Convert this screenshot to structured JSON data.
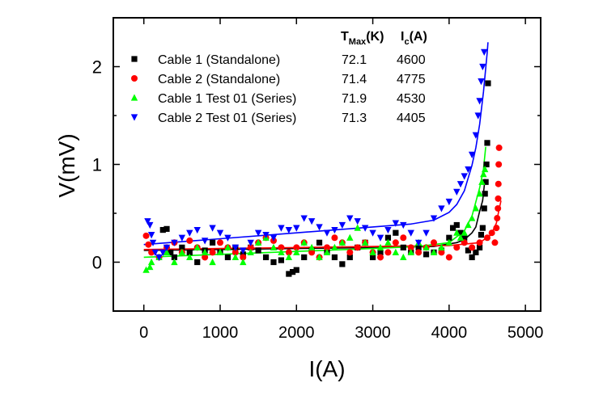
{
  "chart_data": {
    "type": "scatter",
    "xlabel": "I(A)",
    "ylabel": "V(mV)",
    "xlim": [
      -400,
      5200
    ],
    "ylim": [
      -0.5,
      2.5
    ],
    "xticks": [
      0,
      1000,
      2000,
      3000,
      4000,
      5000
    ],
    "yticks": [
      0,
      1,
      2
    ],
    "grid": false,
    "legend_position": "top-left",
    "table_headers": {
      "tmax": "T",
      "tmax_sub": "Max",
      "tmax_unit": "(K)",
      "ic": "I",
      "ic_sub": "c",
      "ic_unit": "(A)"
    },
    "series": [
      {
        "name": "Cable 1 (Standalone)",
        "tmax": "72.1",
        "ic": "4600",
        "color": "#000000",
        "marker": "square",
        "points": [
          [
            250,
            0.33
          ],
          [
            300,
            0.34
          ],
          [
            350,
            0.1
          ],
          [
            400,
            0.05
          ],
          [
            500,
            0.15
          ],
          [
            600,
            0.1
          ],
          [
            700,
            0.0
          ],
          [
            800,
            0.12
          ],
          [
            900,
            0.2
          ],
          [
            1000,
            0.1
          ],
          [
            1100,
            0.05
          ],
          [
            1200,
            0.15
          ],
          [
            1300,
            0.08
          ],
          [
            1400,
            0.15
          ],
          [
            1500,
            0.12
          ],
          [
            1600,
            0.05
          ],
          [
            1700,
            0.0
          ],
          [
            1800,
            0.02
          ],
          [
            1900,
            -0.12
          ],
          [
            1950,
            -0.1
          ],
          [
            2000,
            -0.08
          ],
          [
            2100,
            0.05
          ],
          [
            2200,
            0.12
          ],
          [
            2300,
            0.2
          ],
          [
            2400,
            0.1
          ],
          [
            2500,
            0.05
          ],
          [
            2600,
            -0.02
          ],
          [
            2700,
            0.05
          ],
          [
            2800,
            0.15
          ],
          [
            2900,
            0.2
          ],
          [
            3000,
            0.05
          ],
          [
            3100,
            0.1
          ],
          [
            3200,
            0.25
          ],
          [
            3300,
            0.3
          ],
          [
            3400,
            0.15
          ],
          [
            3500,
            0.1
          ],
          [
            3600,
            0.15
          ],
          [
            3700,
            0.08
          ],
          [
            3800,
            0.1
          ],
          [
            3900,
            0.12
          ],
          [
            4000,
            0.25
          ],
          [
            4050,
            0.35
          ],
          [
            4100,
            0.38
          ],
          [
            4150,
            0.3
          ],
          [
            4200,
            0.25
          ],
          [
            4250,
            0.12
          ],
          [
            4300,
            0.05
          ],
          [
            4350,
            0.1
          ],
          [
            4400,
            0.15
          ],
          [
            4420,
            0.28
          ],
          [
            4440,
            0.35
          ],
          [
            4460,
            0.55
          ],
          [
            4470,
            0.7
          ],
          [
            4480,
            0.82
          ],
          [
            4490,
            1.0
          ],
          [
            4500,
            1.22
          ],
          [
            4510,
            1.83
          ]
        ],
        "fit": [
          [
            0,
            0.12
          ],
          [
            1000,
            0.13
          ],
          [
            2000,
            0.14
          ],
          [
            3000,
            0.15
          ],
          [
            3800,
            0.16
          ],
          [
            4100,
            0.2
          ],
          [
            4200,
            0.23
          ],
          [
            4300,
            0.3
          ],
          [
            4350,
            0.36
          ],
          [
            4400,
            0.52
          ],
          [
            4440,
            0.63
          ],
          [
            4470,
            0.85
          ]
        ]
      },
      {
        "name": "Cable 2 (Standalone)",
        "tmax": "71.4",
        "ic": "4775",
        "color": "#ff0000",
        "marker": "circle",
        "points": [
          [
            30,
            0.27
          ],
          [
            60,
            0.18
          ],
          [
            100,
            0.1
          ],
          [
            200,
            0.05
          ],
          [
            300,
            0.15
          ],
          [
            400,
            0.2
          ],
          [
            500,
            0.1
          ],
          [
            600,
            0.22
          ],
          [
            700,
            0.15
          ],
          [
            800,
            0.05
          ],
          [
            900,
            0.1
          ],
          [
            1000,
            0.2
          ],
          [
            1100,
            0.15
          ],
          [
            1200,
            0.1
          ],
          [
            1300,
            0.05
          ],
          [
            1400,
            0.15
          ],
          [
            1500,
            0.2
          ],
          [
            1600,
            0.25
          ],
          [
            1700,
            0.22
          ],
          [
            1800,
            0.15
          ],
          [
            1900,
            0.1
          ],
          [
            2000,
            0.15
          ],
          [
            2100,
            0.2
          ],
          [
            2200,
            0.1
          ],
          [
            2300,
            0.05
          ],
          [
            2400,
            0.15
          ],
          [
            2500,
            0.25
          ],
          [
            2600,
            0.2
          ],
          [
            2700,
            0.1
          ],
          [
            2800,
            0.15
          ],
          [
            2900,
            0.2
          ],
          [
            3000,
            0.1
          ],
          [
            3100,
            0.05
          ],
          [
            3200,
            0.1
          ],
          [
            3300,
            0.2
          ],
          [
            3400,
            0.25
          ],
          [
            3500,
            0.15
          ],
          [
            3600,
            0.1
          ],
          [
            3700,
            0.15
          ],
          [
            3800,
            0.2
          ],
          [
            3900,
            0.1
          ],
          [
            4000,
            0.05
          ],
          [
            4100,
            0.15
          ],
          [
            4200,
            0.2
          ],
          [
            4300,
            0.15
          ],
          [
            4400,
            0.2
          ],
          [
            4500,
            0.25
          ],
          [
            4560,
            0.3
          ],
          [
            4600,
            0.2
          ],
          [
            4620,
            0.35
          ],
          [
            4630,
            0.45
          ],
          [
            4640,
            0.55
          ],
          [
            4643,
            0.65
          ],
          [
            4646,
            0.8
          ],
          [
            4650,
            1.0
          ],
          [
            4655,
            1.17
          ]
        ],
        "fit": [
          [
            0,
            0.13
          ],
          [
            1000,
            0.14
          ],
          [
            2000,
            0.15
          ],
          [
            3000,
            0.16
          ],
          [
            4000,
            0.17
          ],
          [
            4400,
            0.2
          ],
          [
            4550,
            0.28
          ],
          [
            4620,
            0.4
          ],
          [
            4650,
            0.52
          ],
          [
            4680,
            0.63
          ]
        ]
      },
      {
        "name": "Cable 1 Test 01 (Series)",
        "tmax": "71.9",
        "ic": "4530",
        "color": "#00ff00",
        "marker": "triangle-up",
        "points": [
          [
            30,
            -0.08
          ],
          [
            80,
            -0.05
          ],
          [
            100,
            0.0
          ],
          [
            200,
            0.05
          ],
          [
            300,
            0.1
          ],
          [
            400,
            0.0
          ],
          [
            500,
            0.1
          ],
          [
            600,
            0.05
          ],
          [
            700,
            0.15
          ],
          [
            800,
            0.1
          ],
          [
            900,
            0.0
          ],
          [
            1000,
            0.1
          ],
          [
            1100,
            0.15
          ],
          [
            1200,
            0.05
          ],
          [
            1300,
            0.0
          ],
          [
            1400,
            0.1
          ],
          [
            1500,
            0.2
          ],
          [
            1600,
            0.25
          ],
          [
            1700,
            0.15
          ],
          [
            1800,
            0.1
          ],
          [
            1900,
            0.05
          ],
          [
            2000,
            0.1
          ],
          [
            2100,
            0.2
          ],
          [
            2200,
            0.15
          ],
          [
            2300,
            0.05
          ],
          [
            2400,
            0.1
          ],
          [
            2500,
            0.15
          ],
          [
            2600,
            0.2
          ],
          [
            2700,
            0.25
          ],
          [
            2800,
            0.35
          ],
          [
            2900,
            0.2
          ],
          [
            3000,
            0.1
          ],
          [
            3100,
            0.15
          ],
          [
            3200,
            0.2
          ],
          [
            3300,
            0.1
          ],
          [
            3400,
            0.05
          ],
          [
            3500,
            0.1
          ],
          [
            3600,
            0.2
          ],
          [
            3700,
            0.15
          ],
          [
            3800,
            0.1
          ],
          [
            3900,
            0.15
          ],
          [
            4000,
            0.2
          ],
          [
            4100,
            0.3
          ],
          [
            4150,
            0.25
          ],
          [
            4200,
            0.3
          ],
          [
            4250,
            0.38
          ],
          [
            4300,
            0.45
          ],
          [
            4350,
            0.55
          ],
          [
            4400,
            0.7
          ],
          [
            4430,
            0.82
          ],
          [
            4450,
            0.9
          ],
          [
            4470,
            0.95
          ]
        ],
        "fit": [
          [
            0,
            0.05
          ],
          [
            1000,
            0.08
          ],
          [
            2000,
            0.11
          ],
          [
            3000,
            0.14
          ],
          [
            3600,
            0.16
          ],
          [
            4000,
            0.2
          ],
          [
            4200,
            0.32
          ],
          [
            4300,
            0.47
          ],
          [
            4400,
            0.76
          ],
          [
            4450,
            0.95
          ],
          [
            4480,
            1.18
          ]
        ]
      },
      {
        "name": "Cable 2 Test 01 (Series)",
        "tmax": "71.3",
        "ic": "4405",
        "color": "#0000ff",
        "marker": "triangle-down",
        "points": [
          [
            50,
            0.42
          ],
          [
            80,
            0.38
          ],
          [
            100,
            0.28
          ],
          [
            120,
            0.2
          ],
          [
            150,
            0.1
          ],
          [
            200,
            0.05
          ],
          [
            250,
            0.1
          ],
          [
            300,
            0.15
          ],
          [
            400,
            0.2
          ],
          [
            500,
            0.25
          ],
          [
            600,
            0.3
          ],
          [
            700,
            0.33
          ],
          [
            800,
            0.22
          ],
          [
            900,
            0.35
          ],
          [
            1000,
            0.3
          ],
          [
            1100,
            0.25
          ],
          [
            1200,
            0.15
          ],
          [
            1300,
            0.12
          ],
          [
            1400,
            0.2
          ],
          [
            1500,
            0.3
          ],
          [
            1600,
            0.28
          ],
          [
            1700,
            0.25
          ],
          [
            1800,
            0.35
          ],
          [
            1900,
            0.33
          ],
          [
            2000,
            0.35
          ],
          [
            2100,
            0.45
          ],
          [
            2200,
            0.42
          ],
          [
            2300,
            0.36
          ],
          [
            2400,
            0.3
          ],
          [
            2500,
            0.33
          ],
          [
            2600,
            0.38
          ],
          [
            2700,
            0.45
          ],
          [
            2800,
            0.42
          ],
          [
            2900,
            0.35
          ],
          [
            3000,
            0.3
          ],
          [
            3100,
            0.25
          ],
          [
            3200,
            0.33
          ],
          [
            3300,
            0.4
          ],
          [
            3400,
            0.38
          ],
          [
            3500,
            0.3
          ],
          [
            3600,
            0.2
          ],
          [
            3700,
            0.3
          ],
          [
            3800,
            0.45
          ],
          [
            3900,
            0.55
          ],
          [
            4000,
            0.62
          ],
          [
            4100,
            0.72
          ],
          [
            4150,
            0.8
          ],
          [
            4200,
            0.88
          ],
          [
            4250,
            0.95
          ],
          [
            4300,
            1.1
          ],
          [
            4350,
            1.3
          ],
          [
            4380,
            1.5
          ],
          [
            4400,
            1.65
          ],
          [
            4420,
            1.85
          ],
          [
            4440,
            2.0
          ],
          [
            4460,
            2.15
          ]
        ],
        "fit": [
          [
            0,
            0.18
          ],
          [
            1000,
            0.24
          ],
          [
            2000,
            0.3
          ],
          [
            3000,
            0.36
          ],
          [
            3500,
            0.39
          ],
          [
            3800,
            0.43
          ],
          [
            4000,
            0.51
          ],
          [
            4100,
            0.59
          ],
          [
            4200,
            0.73
          ],
          [
            4300,
            0.99
          ],
          [
            4350,
            1.17
          ],
          [
            4400,
            1.41
          ],
          [
            4450,
            1.74
          ],
          [
            4500,
            2.15
          ],
          [
            4510,
            2.25
          ]
        ]
      }
    ]
  }
}
